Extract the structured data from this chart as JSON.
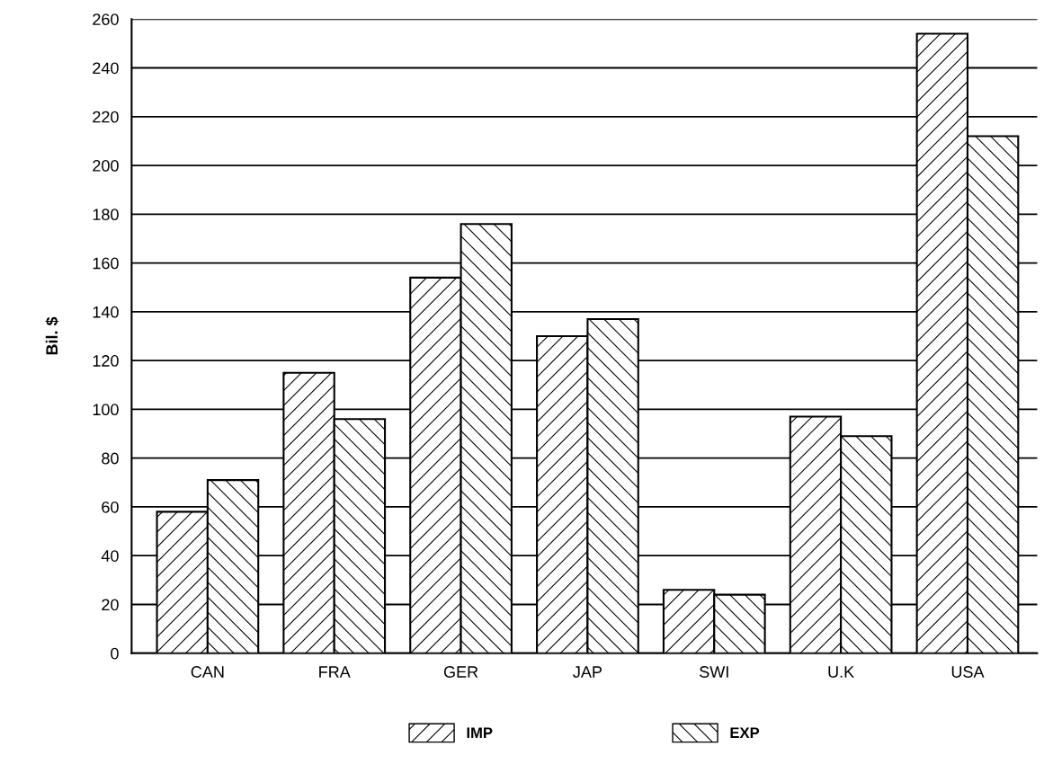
{
  "chart_data": {
    "type": "bar",
    "ylabel": "Bil. $",
    "categories": [
      "CAN",
      "FRA",
      "GER",
      "JAP",
      "SWI",
      "U.K",
      "USA"
    ],
    "series": [
      {
        "name": "IMP",
        "color": "#000000",
        "values": [
          58,
          115,
          154,
          130,
          26,
          97,
          254
        ]
      },
      {
        "name": "EXP",
        "color": "#000000",
        "values": [
          71,
          96,
          176,
          137,
          24,
          89,
          212
        ]
      }
    ],
    "ylim": [
      0,
      260
    ],
    "yticks": [
      0,
      20,
      40,
      60,
      80,
      100,
      120,
      140,
      160,
      180,
      200,
      220,
      240,
      260
    ],
    "grid": "y",
    "legend": "bottom"
  }
}
